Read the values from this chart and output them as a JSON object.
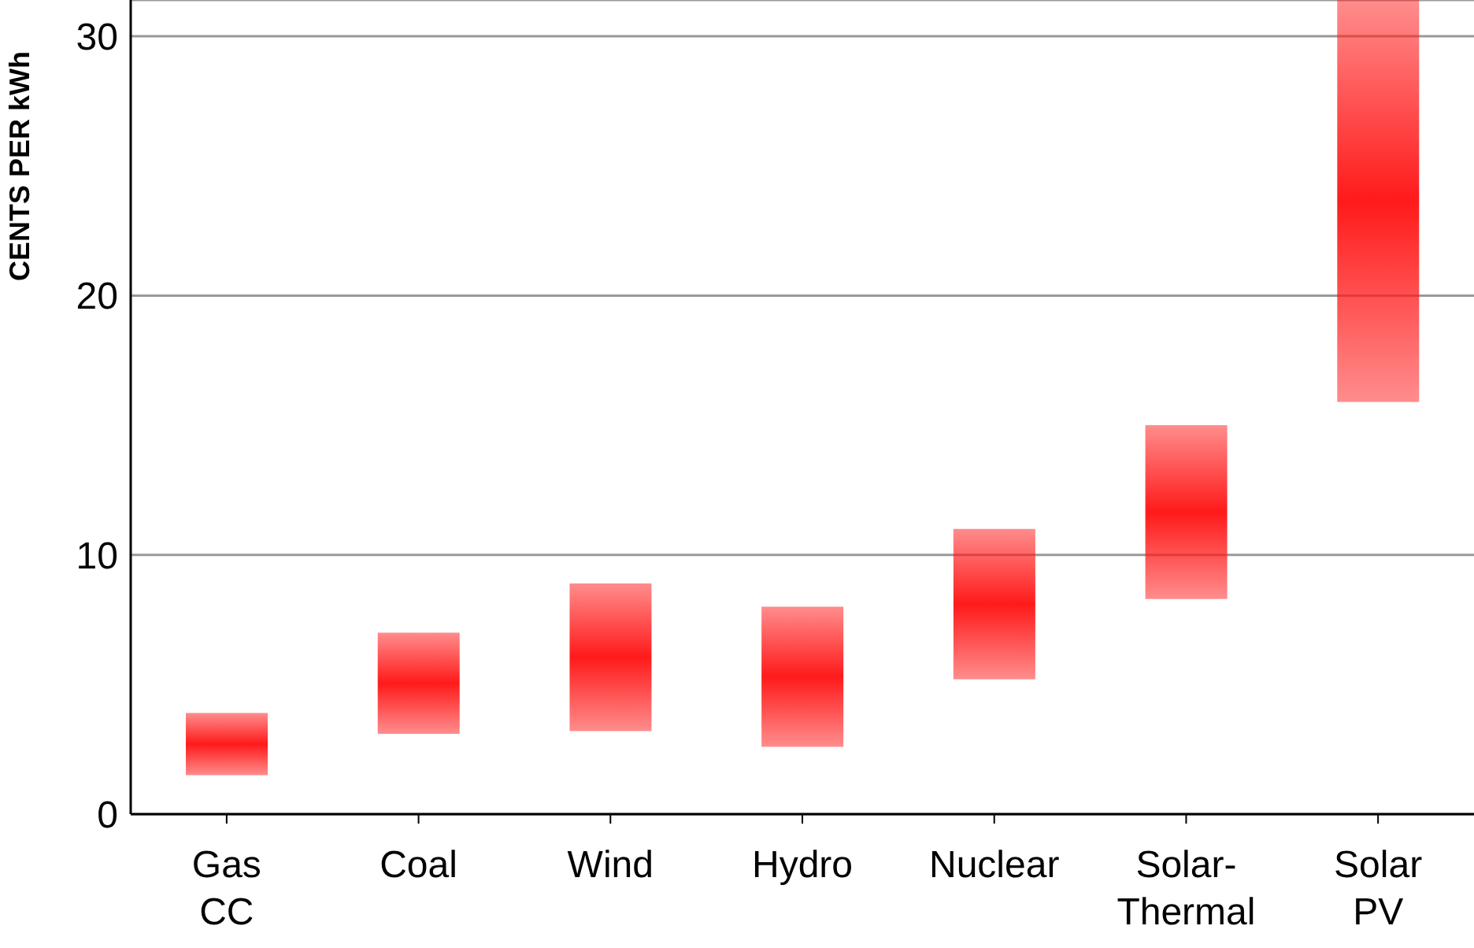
{
  "chart_data": {
    "type": "bar",
    "ylabel": "CENTS PER kWh",
    "categories": [
      "Gas CC",
      "Coal",
      "Wind",
      "Hydro",
      "Nuclear",
      "Solar-Thermal",
      "Solar PV"
    ],
    "base": [
      1.5,
      3.1,
      3.2,
      2.6,
      5.2,
      8.3,
      15.9
    ],
    "values": [
      2.4,
      3.9,
      5.7,
      5.4,
      5.8,
      6.7,
      15.5
    ],
    "color": "#ff1a1a",
    "ylim": [
      0,
      31.4
    ],
    "yticks": [
      0,
      10,
      20,
      30
    ],
    "grid": "y"
  }
}
